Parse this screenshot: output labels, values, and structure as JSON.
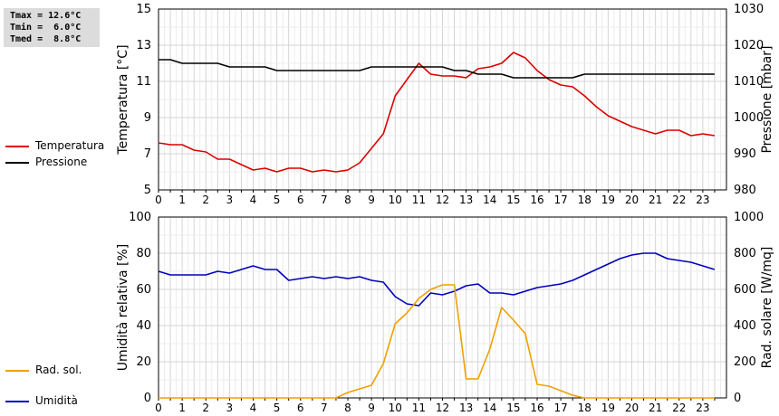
{
  "stats": {
    "tmax": "Tmax = 12.6°C",
    "tmin": "Tmin =  6.0°C",
    "tmed": "Tmed =  8.8°C"
  },
  "legends": {
    "top": [
      {
        "name": "Temperatura",
        "color": "#dd0000"
      },
      {
        "name": "Pressione",
        "color": "#000000"
      }
    ],
    "bottom": [
      {
        "name": "Umidità",
        "color": "#0000c0"
      },
      {
        "name": "Rad. sol.",
        "color": "#f0a000"
      }
    ]
  },
  "chart_data": [
    {
      "type": "line",
      "xlim": [
        0,
        24
      ],
      "x_ticks": [
        "0",
        "0.5",
        "1",
        "1.5",
        "2",
        "2.5",
        "3",
        "3.5",
        "4",
        "4.5",
        "5",
        "5.5",
        "6",
        "6.5",
        "7",
        "7.5",
        "8",
        "8.5",
        "9",
        "9.5",
        "10",
        "10.5",
        "11",
        "11.5",
        "12",
        "12.5",
        "13",
        "13.5",
        "14",
        "14.5",
        "15",
        "15.5",
        "16",
        "16.5",
        "17",
        "17.5",
        "18",
        "18.5",
        "19",
        "19.5",
        "20",
        "20.5",
        "21",
        "21.5",
        "22",
        "22.5",
        "23",
        "23.5"
      ],
      "x_tick_values": [
        0,
        0.5,
        1,
        1.5,
        2,
        2.5,
        3,
        3.5,
        4,
        4.5,
        5,
        5.5,
        6,
        6.5,
        7,
        7.5,
        8,
        8.5,
        9,
        9.5,
        10,
        10.5,
        11,
        11.5,
        12,
        12.5,
        13,
        13.5,
        14,
        14.5,
        15,
        15.5,
        16,
        16.5,
        17,
        17.5,
        18,
        18.5,
        19,
        19.5,
        20,
        20.5,
        21,
        21.5,
        22,
        22.5,
        23,
        23.5
      ],
      "ylabel_left": "Temperatura [°C]",
      "ylabel_right": "Pressione [mbar]",
      "ylim_left": [
        5,
        15
      ],
      "ylim_right": [
        980,
        1030
      ],
      "yticks_left": [
        "5",
        "7",
        "9",
        "11",
        "13",
        "15"
      ],
      "yticks_right": [
        "980",
        "990",
        "1000",
        "1010",
        "1020",
        "1030"
      ],
      "grid": true,
      "series": [
        {
          "name": "Temperatura",
          "axis": "left",
          "color": "#dd0000",
          "x": [
            0,
            0.5,
            1,
            1.5,
            2,
            2.5,
            3,
            3.5,
            4,
            4.5,
            5,
            5.5,
            6,
            6.5,
            7,
            7.5,
            8,
            8.5,
            9,
            9.5,
            10,
            10.5,
            11,
            11.5,
            12,
            12.5,
            13,
            13.5,
            14,
            14.5,
            15,
            15.5,
            16,
            16.5,
            17,
            17.5,
            18,
            18.5,
            19,
            19.5,
            20,
            20.5,
            21,
            21.5,
            22,
            22.5,
            23,
            23.5
          ],
          "values": [
            7.6,
            7.5,
            7.5,
            7.2,
            7.1,
            6.7,
            6.7,
            6.4,
            6.1,
            6.2,
            6.0,
            6.2,
            6.2,
            6.0,
            6.1,
            6.0,
            6.1,
            6.5,
            7.3,
            8.1,
            10.2,
            11.1,
            12.0,
            11.4,
            11.3,
            11.3,
            11.2,
            11.7,
            11.8,
            12.0,
            12.6,
            12.3,
            11.6,
            11.1,
            10.8,
            10.7,
            10.2,
            9.6,
            9.1,
            8.8,
            8.5,
            8.3,
            8.1,
            8.3,
            8.3,
            8.0,
            8.1,
            8.0
          ]
        },
        {
          "name": "Pressione",
          "axis": "right",
          "color": "#000000",
          "x": [
            0,
            0.5,
            1,
            1.5,
            2,
            2.5,
            3,
            3.5,
            4,
            4.5,
            5,
            5.5,
            6,
            6.5,
            7,
            7.5,
            8,
            8.5,
            9,
            9.5,
            10,
            10.5,
            11,
            11.5,
            12,
            12.5,
            13,
            13.5,
            14,
            14.5,
            15,
            15.5,
            16,
            16.5,
            17,
            17.5,
            18,
            18.5,
            19,
            19.5,
            20,
            20.5,
            21,
            21.5,
            22,
            22.5,
            23,
            23.5
          ],
          "values": [
            1016,
            1016,
            1015,
            1015,
            1015,
            1015,
            1014,
            1014,
            1014,
            1014,
            1013,
            1013,
            1013,
            1013,
            1013,
            1013,
            1013,
            1013,
            1014,
            1014,
            1014,
            1014,
            1014,
            1014,
            1014,
            1013,
            1013,
            1012,
            1012,
            1012,
            1011,
            1011,
            1011,
            1011,
            1011,
            1011,
            1012,
            1012,
            1012,
            1012,
            1012,
            1012,
            1012,
            1012,
            1012,
            1012,
            1012,
            1012
          ]
        }
      ]
    },
    {
      "type": "line",
      "xlim": [
        0,
        24
      ],
      "x_ticks": [
        "0",
        "0.5",
        "1",
        "1.5",
        "2",
        "2.5",
        "3",
        "3.5",
        "4",
        "4.5",
        "5",
        "5.5",
        "6",
        "6.5",
        "7",
        "7.5",
        "8",
        "8.5",
        "9",
        "9.5",
        "10",
        "10.5",
        "11",
        "11.5",
        "12",
        "12.5",
        "13",
        "13.5",
        "14",
        "14.5",
        "15",
        "15.5",
        "16",
        "16.5",
        "17",
        "17.5",
        "18",
        "18.5",
        "19",
        "19.5",
        "20",
        "20.5",
        "21",
        "21.5",
        "22",
        "22.5",
        "23",
        "23.5"
      ],
      "x_tick_values": [
        0,
        0.5,
        1,
        1.5,
        2,
        2.5,
        3,
        3.5,
        4,
        4.5,
        5,
        5.5,
        6,
        6.5,
        7,
        7.5,
        8,
        8.5,
        9,
        9.5,
        10,
        10.5,
        11,
        11.5,
        12,
        12.5,
        13,
        13.5,
        14,
        14.5,
        15,
        15.5,
        16,
        16.5,
        17,
        17.5,
        18,
        18.5,
        19,
        19.5,
        20,
        20.5,
        21,
        21.5,
        22,
        22.5,
        23,
        23.5
      ],
      "ylabel_left": "Umidità relativa [%]",
      "ylabel_right": "Rad. solare [W/mq]",
      "ylim_left": [
        0,
        100
      ],
      "ylim_right": [
        0,
        1000
      ],
      "yticks_left": [
        "0",
        "20",
        "40",
        "60",
        "80",
        "100"
      ],
      "yticks_right": [
        "0",
        "200",
        "400",
        "600",
        "800",
        "1000"
      ],
      "grid": true,
      "series": [
        {
          "name": "Umidità",
          "axis": "left",
          "color": "#0000c0",
          "x": [
            0,
            0.5,
            1,
            1.5,
            2,
            2.5,
            3,
            3.5,
            4,
            4.5,
            5,
            5.5,
            6,
            6.5,
            7,
            7.5,
            8,
            8.5,
            9,
            9.5,
            10,
            10.5,
            11,
            11.5,
            12,
            12.5,
            13,
            13.5,
            14,
            14.5,
            15,
            15.5,
            16,
            16.5,
            17,
            17.5,
            18,
            18.5,
            19,
            19.5,
            20,
            20.5,
            21,
            21.5,
            22,
            22.5,
            23,
            23.5
          ],
          "values": [
            70,
            68,
            68,
            68,
            68,
            70,
            69,
            71,
            73,
            71,
            71,
            65,
            66,
            67,
            66,
            67,
            66,
            67,
            65,
            64,
            56,
            52,
            51,
            58,
            57,
            59,
            62,
            63,
            58,
            58,
            57,
            59,
            61,
            62,
            63,
            65,
            68,
            71,
            74,
            77,
            79,
            80,
            80,
            77,
            76,
            75,
            73,
            71
          ]
        },
        {
          "name": "Rad. sol.",
          "axis": "right",
          "color": "#f0a000",
          "x": [
            0,
            0.5,
            1,
            1.5,
            2,
            2.5,
            3,
            3.5,
            4,
            4.5,
            5,
            5.5,
            6,
            6.5,
            7,
            7.5,
            8,
            8.5,
            9,
            9.5,
            10,
            10.5,
            11,
            11.5,
            12,
            12.5,
            13,
            13.5,
            14,
            14.5,
            15,
            15.5,
            16,
            16.5,
            17,
            17.5,
            18,
            18.5,
            19,
            19.5,
            20,
            20.5,
            21,
            21.5,
            22,
            22.5,
            23,
            23.5
          ],
          "values": [
            0,
            0,
            0,
            0,
            0,
            0,
            0,
            0,
            0,
            0,
            0,
            0,
            0,
            0,
            0,
            0,
            30,
            50,
            70,
            190,
            410,
            470,
            550,
            600,
            625,
            625,
            105,
            105,
            270,
            500,
            430,
            355,
            75,
            65,
            40,
            15,
            0,
            0,
            0,
            0,
            0,
            0,
            0,
            0,
            0,
            0,
            0,
            0
          ]
        }
      ]
    }
  ]
}
